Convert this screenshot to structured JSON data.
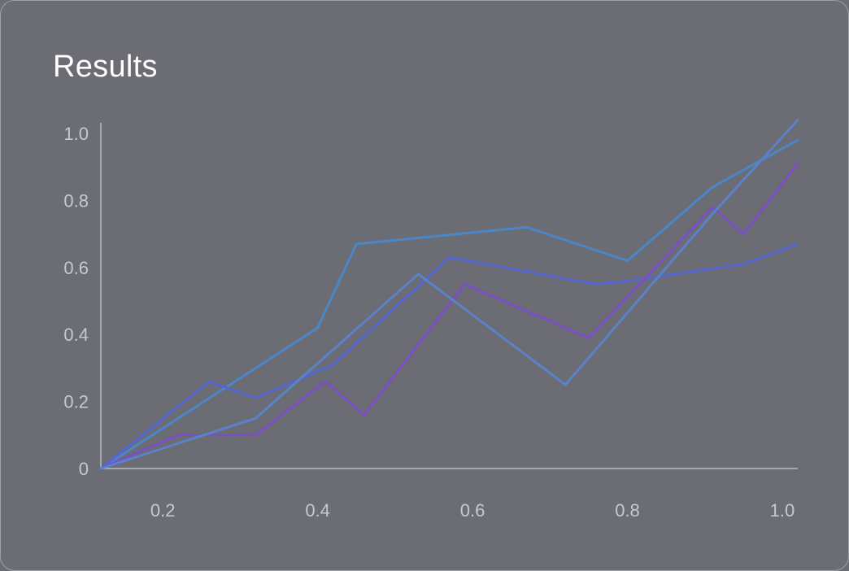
{
  "chart_data": {
    "type": "line",
    "title": "Results",
    "xlim": [
      0.12,
      1.02
    ],
    "ylim": [
      0,
      1.0
    ],
    "x_ticks": [
      "0.2",
      "0.4",
      "0.6",
      "0.8",
      "1.0"
    ],
    "y_ticks": [
      "0",
      "0.2",
      "0.4",
      "0.6",
      "0.8",
      "1.0"
    ],
    "grid": false,
    "legend": "none",
    "series": [
      {
        "color": "#4a87c9",
        "x": [
          0.12,
          0.4,
          0.45,
          0.67,
          0.8,
          0.91,
          1.02
        ],
        "y": [
          0.0,
          0.42,
          0.67,
          0.72,
          0.62,
          0.84,
          0.98
        ]
      },
      {
        "color": "#5466d2",
        "x": [
          0.12,
          0.26,
          0.32,
          0.42,
          0.57,
          0.76,
          0.8,
          0.95,
          1.02
        ],
        "y": [
          0.0,
          0.26,
          0.21,
          0.31,
          0.63,
          0.55,
          0.56,
          0.61,
          0.67
        ]
      },
      {
        "color": "#7a50c6",
        "x": [
          0.12,
          0.22,
          0.32,
          0.41,
          0.46,
          0.59,
          0.75,
          0.91,
          0.95,
          1.02
        ],
        "y": [
          0.0,
          0.1,
          0.1,
          0.26,
          0.16,
          0.55,
          0.39,
          0.78,
          0.7,
          0.91
        ]
      },
      {
        "color": "#5a82c8",
        "x": [
          0.12,
          0.32,
          0.53,
          0.72,
          0.91,
          1.02
        ],
        "y": [
          0.0,
          0.15,
          0.58,
          0.25,
          0.76,
          1.04
        ]
      }
    ]
  }
}
